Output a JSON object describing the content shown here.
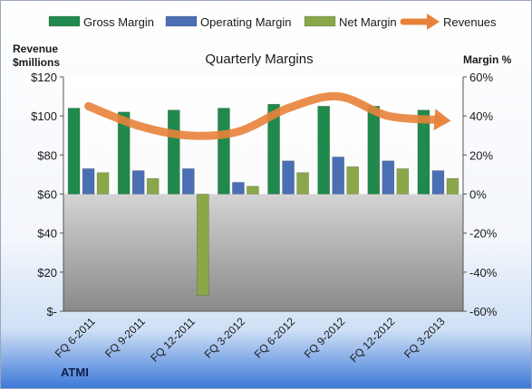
{
  "chart_data": {
    "type": "bar",
    "title": "Quarterly Margins",
    "left_axis_label_line1": "Revenue",
    "left_axis_label_line2": "$millions",
    "right_axis_label": "Margin %",
    "company": "ATMI",
    "categories": [
      "FQ 6-2011",
      "FQ 9-2011",
      "FQ 12-2011",
      "FQ 3-2012",
      "FQ 6-2012",
      "FQ 9-2012",
      "FQ 12-2012",
      "FQ 3-2013"
    ],
    "left_ylim": [
      0,
      120
    ],
    "left_ticks": [
      {
        "value": 120,
        "label": "$120"
      },
      {
        "value": 100,
        "label": "$100"
      },
      {
        "value": 80,
        "label": "$80"
      },
      {
        "value": 60,
        "label": "$60"
      },
      {
        "value": 40,
        "label": "$40"
      },
      {
        "value": 20,
        "label": "$20"
      },
      {
        "value": 0,
        "label": "$-"
      }
    ],
    "right_ylim": [
      -60,
      60
    ],
    "right_ticks": [
      {
        "value": 60,
        "label": "60%"
      },
      {
        "value": 40,
        "label": "40%"
      },
      {
        "value": 20,
        "label": "20%"
      },
      {
        "value": 0,
        "label": "0%"
      },
      {
        "value": -20,
        "label": "-20%"
      },
      {
        "value": -40,
        "label": "-40%"
      },
      {
        "value": -60,
        "label": "-60%"
      }
    ],
    "series": [
      {
        "name": "Gross Margin",
        "axis": "right",
        "kind": "bar",
        "color": "#1f8a4c",
        "values": [
          44,
          42,
          43,
          44,
          46,
          45,
          45,
          43
        ]
      },
      {
        "name": "Operating Margin",
        "axis": "right",
        "kind": "bar",
        "color": "#4a6fb5",
        "values": [
          13,
          12,
          13,
          6,
          17,
          19,
          17,
          12
        ]
      },
      {
        "name": "Net Margin",
        "axis": "right",
        "kind": "bar",
        "color": "#8aa84a",
        "values": [
          11,
          8,
          -52,
          4,
          11,
          14,
          13,
          8
        ]
      },
      {
        "name": "Revenues",
        "axis": "left",
        "kind": "line",
        "color": "#e8823a",
        "values": [
          105,
          95,
          90,
          92,
          104,
          110,
          100,
          98
        ]
      }
    ],
    "legend_position": "top",
    "grid": false
  }
}
